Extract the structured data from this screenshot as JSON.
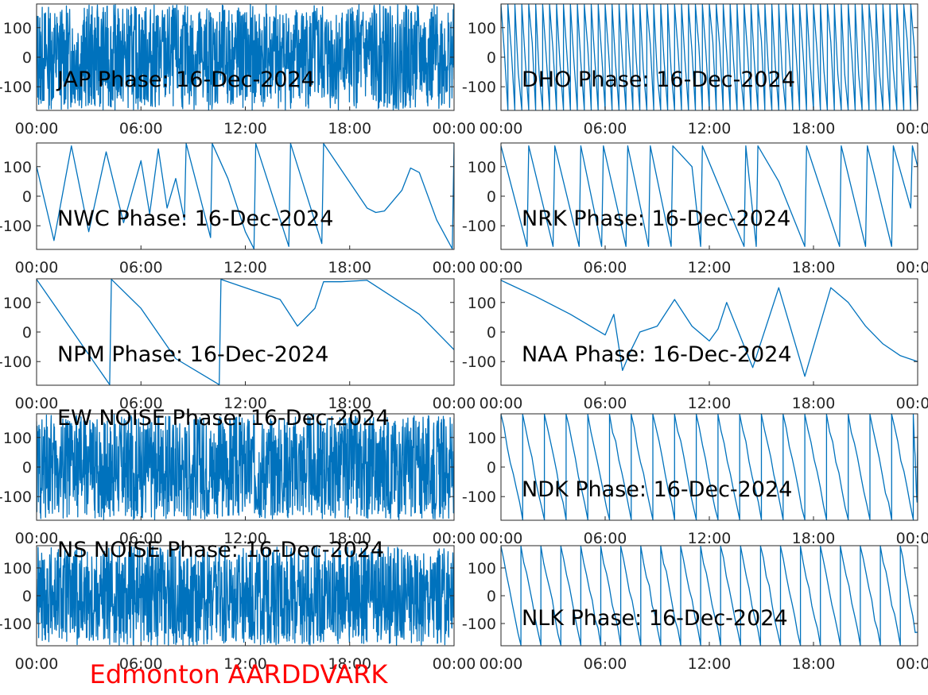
{
  "footer": {
    "label": "Edmonton AARDDVARK",
    "color": "#FF0000"
  },
  "colors": {
    "trace": "#0072BD",
    "axes": "#262626"
  },
  "x_ticks": [
    "00:00",
    "06:00",
    "12:00",
    "18:00",
    "00:00"
  ],
  "y_ticks": [
    "100",
    "0",
    "-100"
  ],
  "chart_data": [
    {
      "type": "line",
      "title": "JAP Phase: 16-Dec-2024",
      "xlabel": "",
      "ylabel": "",
      "xlim": [
        0,
        24
      ],
      "ylim": [
        -180,
        180
      ],
      "xticks": [
        "00:00",
        "06:00",
        "12:00",
        "18:00",
        "00:00"
      ],
      "yticks": [
        100,
        0,
        -100
      ],
      "pattern": "noise",
      "series": [
        {
          "values": []
        }
      ]
    },
    {
      "type": "line",
      "title": "DHO Phase: 16-Dec-2024",
      "xlabel": "",
      "ylabel": "",
      "xlim": [
        0,
        24
      ],
      "ylim": [
        -180,
        180
      ],
      "xticks": [
        "00:00",
        "06:00",
        "12:00",
        "18:00",
        "00:00"
      ],
      "yticks": [
        100,
        0,
        -100
      ],
      "pattern": "rapid-wrap",
      "series": [
        {
          "values": []
        }
      ]
    },
    {
      "type": "line",
      "title": "NWC Phase: 16-Dec-2024",
      "xlabel": "",
      "ylabel": "",
      "xlim": [
        0,
        24
      ],
      "ylim": [
        -180,
        180
      ],
      "xticks": [
        "00:00",
        "06:00",
        "12:00",
        "18:00",
        "00:00"
      ],
      "yticks": [
        100,
        0,
        -100
      ],
      "series": [
        {
          "values": [
            [
              0.0,
              100
            ],
            [
              1.0,
              -150
            ],
            [
              2.0,
              170
            ],
            [
              3.0,
              -120
            ],
            [
              4.0,
              150
            ],
            [
              5.0,
              -90
            ],
            [
              6.0,
              120
            ],
            [
              6.5,
              -60
            ],
            [
              7.0,
              160
            ],
            [
              7.5,
              -40
            ],
            [
              8.0,
              60
            ],
            [
              8.5,
              -80
            ],
            [
              8.6,
              178
            ],
            [
              10.0,
              -140
            ],
            [
              10.1,
              178
            ],
            [
              11.0,
              60
            ],
            [
              12.0,
              -120
            ],
            [
              12.5,
              -178
            ],
            [
              12.6,
              178
            ],
            [
              14.5,
              -170
            ],
            [
              14.6,
              178
            ],
            [
              16.4,
              -160
            ],
            [
              16.5,
              178
            ],
            [
              19.0,
              -40
            ],
            [
              19.5,
              -55
            ],
            [
              20.0,
              -50
            ],
            [
              21.0,
              20
            ],
            [
              21.5,
              95
            ],
            [
              22.0,
              80
            ],
            [
              23.0,
              -80
            ],
            [
              23.9,
              -178
            ],
            [
              24.0,
              178
            ]
          ]
        }
      ]
    },
    {
      "type": "line",
      "title": "NRK Phase: 16-Dec-2024",
      "xlabel": "",
      "ylabel": "",
      "xlim": [
        0,
        24
      ],
      "ylim": [
        -180,
        180
      ],
      "xticks": [
        "00:00",
        "06:00",
        "12:00",
        "18:00",
        "00:00"
      ],
      "yticks": [
        100,
        0,
        -100
      ],
      "series": [
        {
          "values": [
            [
              0.0,
              170
            ],
            [
              1.5,
              -170
            ],
            [
              1.6,
              170
            ],
            [
              3.0,
              -170
            ],
            [
              3.1,
              170
            ],
            [
              4.5,
              -170
            ],
            [
              4.6,
              170
            ],
            [
              5.8,
              -170
            ],
            [
              5.9,
              170
            ],
            [
              7.2,
              -170
            ],
            [
              7.3,
              170
            ],
            [
              8.5,
              -170
            ],
            [
              8.6,
              170
            ],
            [
              9.8,
              -170
            ],
            [
              9.9,
              170
            ],
            [
              11.0,
              100
            ],
            [
              11.5,
              -170
            ],
            [
              11.6,
              170
            ],
            [
              13.5,
              -100
            ],
            [
              14.0,
              -170
            ],
            [
              14.1,
              170
            ],
            [
              14.7,
              -170
            ],
            [
              14.8,
              170
            ],
            [
              16.0,
              50
            ],
            [
              17.5,
              -170
            ],
            [
              17.6,
              170
            ],
            [
              19.5,
              -170
            ],
            [
              19.6,
              170
            ],
            [
              21.0,
              -170
            ],
            [
              21.1,
              170
            ],
            [
              22.5,
              -170
            ],
            [
              22.6,
              170
            ],
            [
              23.6,
              -40
            ],
            [
              23.7,
              170
            ],
            [
              24.0,
              100
            ]
          ]
        }
      ]
    },
    {
      "type": "line",
      "title": "NPM Phase: 16-Dec-2024",
      "xlabel": "",
      "ylabel": "",
      "xlim": [
        0,
        24
      ],
      "ylim": [
        -180,
        180
      ],
      "xticks": [
        "00:00",
        "06:00",
        "12:00",
        "18:00",
        "00:00"
      ],
      "yticks": [
        100,
        0,
        -100
      ],
      "series": [
        {
          "values": [
            [
              0.0,
              178
            ],
            [
              4.2,
              -178
            ],
            [
              4.3,
              178
            ],
            [
              6.0,
              80
            ],
            [
              8.0,
              -90
            ],
            [
              10.5,
              -178
            ],
            [
              10.6,
              178
            ],
            [
              12.0,
              150
            ],
            [
              14.0,
              110
            ],
            [
              15.0,
              20
            ],
            [
              16.0,
              80
            ],
            [
              16.5,
              170
            ],
            [
              17.5,
              170
            ],
            [
              19.0,
              175
            ],
            [
              22.0,
              60
            ],
            [
              24.0,
              -60
            ]
          ]
        }
      ]
    },
    {
      "type": "line",
      "title": "NAA Phase: 16-Dec-2024",
      "xlabel": "",
      "ylabel": "",
      "xlim": [
        0,
        24
      ],
      "ylim": [
        -180,
        180
      ],
      "xticks": [
        "00:00",
        "06:00",
        "12:00",
        "18:00",
        "00:00"
      ],
      "yticks": [
        100,
        0,
        -100
      ],
      "series": [
        {
          "values": [
            [
              0.0,
              175
            ],
            [
              2.0,
              120
            ],
            [
              4.0,
              60
            ],
            [
              6.0,
              -10
            ],
            [
              6.5,
              60
            ],
            [
              7.0,
              -130
            ],
            [
              7.5,
              -60
            ],
            [
              8.0,
              0
            ],
            [
              9.0,
              20
            ],
            [
              10.0,
              110
            ],
            [
              11.0,
              20
            ],
            [
              12.0,
              -30
            ],
            [
              12.5,
              10
            ],
            [
              13.0,
              100
            ],
            [
              14.5,
              -120
            ],
            [
              16.0,
              150
            ],
            [
              17.5,
              -150
            ],
            [
              19.0,
              150
            ],
            [
              20.0,
              100
            ],
            [
              21.0,
              20
            ],
            [
              22.0,
              -40
            ],
            [
              23.0,
              -80
            ],
            [
              24.0,
              -100
            ]
          ]
        }
      ]
    },
    {
      "type": "line",
      "title": "EW NOISE Phase: 16-Dec-2024",
      "xlabel": "",
      "ylabel": "",
      "xlim": [
        0,
        24
      ],
      "ylim": [
        -180,
        180
      ],
      "xticks": [
        "00:00",
        "06:00",
        "12:00",
        "18:00",
        "00:00"
      ],
      "yticks": [
        100,
        0,
        -100
      ],
      "pattern": "noise",
      "series": [
        {
          "values": []
        }
      ]
    },
    {
      "type": "line",
      "title": "NDK Phase: 16-Dec-2024",
      "xlabel": "",
      "ylabel": "",
      "xlim": [
        0,
        24
      ],
      "ylim": [
        -180,
        180
      ],
      "xticks": [
        "00:00",
        "06:00",
        "12:00",
        "18:00",
        "00:00"
      ],
      "yticks": [
        100,
        0,
        -100
      ],
      "pattern": "sawtooth",
      "period_hours": 1.25,
      "series": [
        {
          "values": []
        }
      ]
    },
    {
      "type": "line",
      "title": "NS NOISE Phase: 16-Dec-2024",
      "xlabel": "",
      "ylabel": "",
      "xlim": [
        0,
        24
      ],
      "ylim": [
        -180,
        180
      ],
      "xticks": [
        "00:00",
        "06:00",
        "12:00",
        "18:00",
        "00:00"
      ],
      "yticks": [
        100,
        0,
        -100
      ],
      "pattern": "noise",
      "series": [
        {
          "values": []
        }
      ]
    },
    {
      "type": "line",
      "title": "NLK Phase: 16-Dec-2024",
      "xlabel": "",
      "ylabel": "",
      "xlim": [
        0,
        24
      ],
      "ylim": [
        -180,
        180
      ],
      "xticks": [
        "00:00",
        "06:00",
        "12:00",
        "18:00",
        "00:00"
      ],
      "yticks": [
        100,
        0,
        -100
      ],
      "pattern": "sawtooth",
      "period_hours": 1.15,
      "series": [
        {
          "values": []
        }
      ]
    }
  ]
}
